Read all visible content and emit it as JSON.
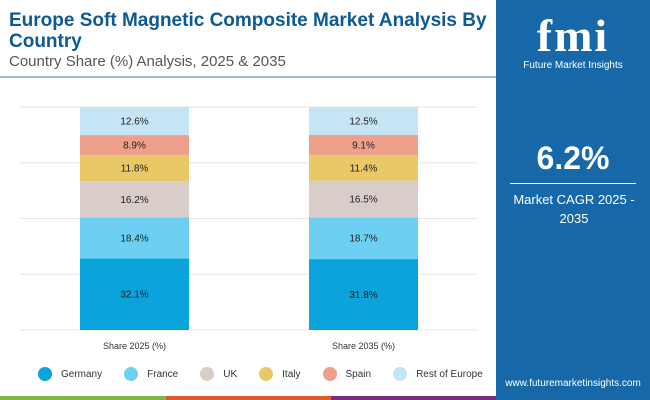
{
  "header": {
    "title": "Europe Soft Magnetic Composite Market Analysis By Country",
    "subtitle": "Country Share (%) Analysis, 2025 & 2035"
  },
  "side_panel": {
    "logo_text": "fmi",
    "logo_name": "Future Market Insights",
    "cagr_value": "6.2%",
    "cagr_label": "Market CAGR 2025 - 2035",
    "url": "www.futuremarketinsights.com",
    "background": "#1668a8"
  },
  "chart_data": {
    "type": "stacked-bar",
    "categories": [
      "Share 2025 (%)",
      "Share 2035 (%)"
    ],
    "ylim": [
      0,
      100
    ],
    "grid": true,
    "legend_position": "bottom",
    "series": [
      {
        "name": "Germany",
        "color": "#0aa3dc",
        "values": [
          32.1,
          31.8
        ],
        "labels": [
          "32.1%",
          "31.8%"
        ]
      },
      {
        "name": "France",
        "color": "#6dd0f2",
        "values": [
          18.4,
          18.7
        ],
        "labels": [
          "18.4%",
          "18.7%"
        ]
      },
      {
        "name": "UK",
        "color": "#d9cdc9",
        "values": [
          16.2,
          16.5
        ],
        "labels": [
          "16.2%",
          "16.5%"
        ]
      },
      {
        "name": "Italy",
        "color": "#e9c868",
        "values": [
          11.8,
          11.4
        ],
        "labels": [
          "11.8%",
          "11.4%"
        ]
      },
      {
        "name": "Spain",
        "color": "#eea08b",
        "values": [
          8.9,
          9.1
        ],
        "labels": [
          "8.9%",
          "9.1%"
        ]
      },
      {
        "name": "Rest of Europe",
        "color": "#c5e4f4",
        "values": [
          12.6,
          12.5
        ],
        "labels": [
          "12.6%",
          "12.5%"
        ]
      }
    ]
  }
}
